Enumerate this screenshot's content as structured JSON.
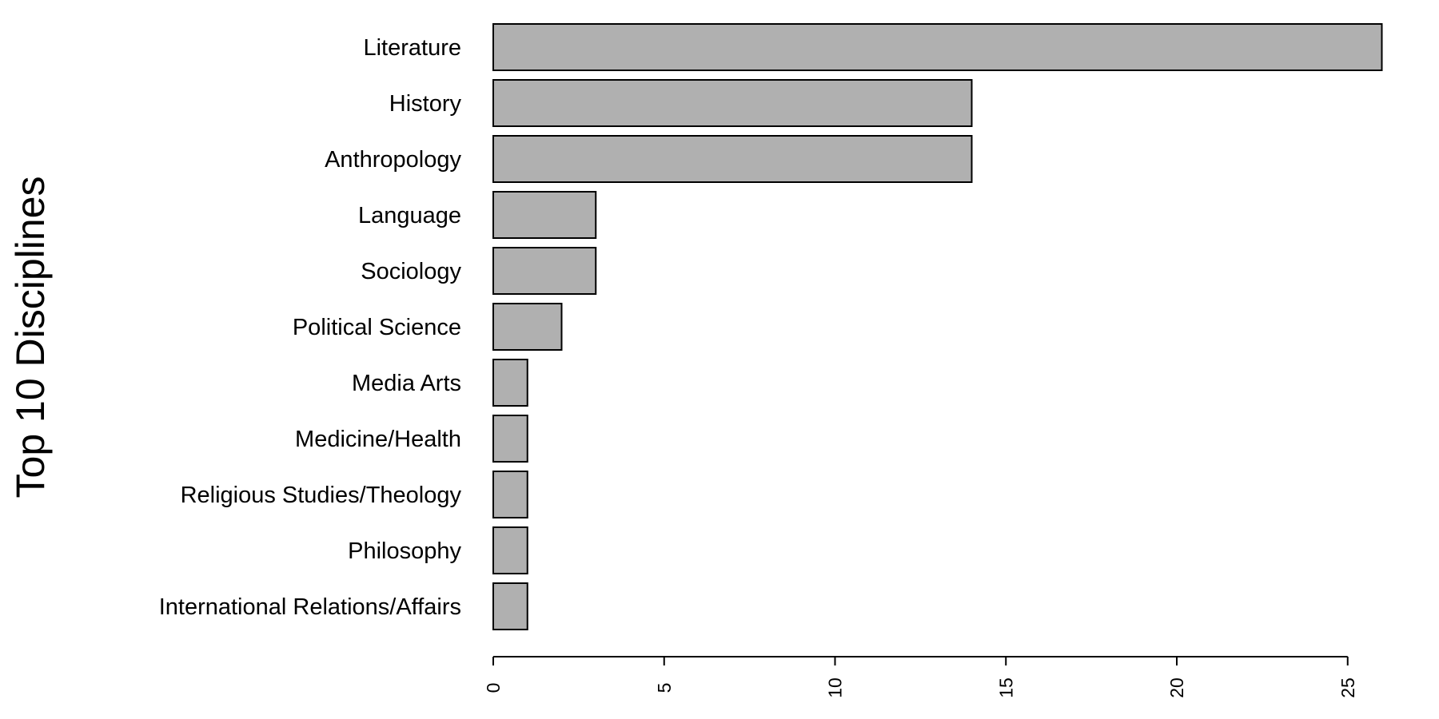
{
  "chart_data": {
    "type": "bar",
    "orientation": "horizontal",
    "ylabel": "Top 10 Disciplines",
    "xlabel": "",
    "categories": [
      "Literature",
      "History",
      "Anthropology",
      "Language",
      "Sociology",
      "Political Science",
      "Media Arts",
      "Medicine/Health",
      "Religious Studies/Theology",
      "Philosophy",
      "International Relations/Affairs"
    ],
    "values": [
      26,
      14,
      14,
      3,
      3,
      2,
      1,
      1,
      1,
      1,
      1
    ],
    "xlim": [
      0,
      25
    ],
    "xticks": [
      "0",
      "5",
      "10",
      "15",
      "20",
      "25"
    ],
    "tick_label_orientation": "vertical",
    "grid": false,
    "legend": "none",
    "colors": {
      "bar_fill": "#b0b0b0",
      "bar_stroke": "#000000",
      "text": "#000000"
    }
  }
}
